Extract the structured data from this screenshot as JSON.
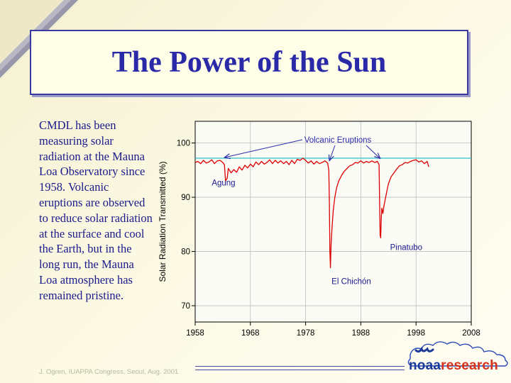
{
  "slide": {
    "title": "The Power of the Sun",
    "body": "CMDL has been measuring solar radiation at the Mauna Loa Observatory since 1958.  Volcanic eruptions are observed to reduce solar radiation at the surface and cool the Earth, but in the long run, the Mauna Loa atmosphere has remained pristine.",
    "footer": "J. Ogren, IUAPPA Congress, Seoul, Aug. 2001",
    "logo": {
      "left": "noaa",
      "right": "research"
    }
  },
  "colors": {
    "title": "#2a2aa8",
    "body_text": "#1a1a8c",
    "series": "#dd0000",
    "reference_line": "#30c0c8",
    "arrow": "#2a2aa8"
  },
  "chart_data": {
    "type": "line",
    "title": "",
    "xlabel": "",
    "ylabel": "Solar Radiation Transmitted (%)",
    "xlim": [
      1958,
      2008
    ],
    "ylim": [
      67,
      104
    ],
    "xticks": [
      "1958",
      "1968",
      "1978",
      "1988",
      "1998",
      "2008"
    ],
    "yticks": [
      "70",
      "80",
      "90",
      "100"
    ],
    "grid": true,
    "reference_line": 97.2,
    "annotations": [
      {
        "text": "Volcanic Eruptions",
        "arrow_targets": [
          [
            1963.3,
            97.2
          ],
          [
            1982.3,
            96.6
          ],
          [
            1991.5,
            97.0
          ]
        ]
      },
      {
        "text": "Agung",
        "x": 1961.0,
        "y": 92.2
      },
      {
        "text": "El Chichón",
        "x": 1982.7,
        "y": 74.0
      },
      {
        "text": "Pinatubo",
        "x": 1993.3,
        "y": 80.3
      }
    ],
    "series": [
      {
        "x": [
          1958.0,
          1958.5,
          1959.0,
          1959.5,
          1960.0,
          1960.5,
          1961.0,
          1961.5,
          1962.0,
          1962.5,
          1963.0,
          1963.3,
          1963.5,
          1963.8,
          1964.0,
          1964.5,
          1965.0,
          1965.5,
          1966.0,
          1966.5,
          1967.0,
          1967.5,
          1968.0,
          1968.5,
          1969.0,
          1969.5,
          1970.0,
          1970.5,
          1971.0,
          1971.5,
          1972.0,
          1972.5,
          1973.0,
          1973.5,
          1974.0,
          1974.5,
          1975.0,
          1975.5,
          1976.0,
          1976.5,
          1977.0,
          1977.5,
          1978.0,
          1978.5,
          1979.0,
          1979.5,
          1980.0,
          1980.5,
          1981.0,
          1981.5,
          1982.0,
          1982.2,
          1982.3,
          1982.4,
          1982.5,
          1982.6,
          1982.8,
          1983.0,
          1983.3,
          1983.6,
          1984.0,
          1984.5,
          1985.0,
          1985.5,
          1986.0,
          1986.5,
          1987.0,
          1987.5,
          1988.0,
          1988.5,
          1989.0,
          1989.5,
          1990.0,
          1990.5,
          1991.0,
          1991.3,
          1991.4,
          1991.5,
          1991.6,
          1991.7,
          1991.8,
          1992.0,
          1992.2,
          1992.5,
          1992.8,
          1993.0,
          1993.5,
          1994.0,
          1994.5,
          1995.0,
          1995.5,
          1996.0,
          1996.5,
          1997.0,
          1997.5,
          1998.0,
          1998.5,
          1999.0,
          1999.5,
          2000.0,
          2000.3
        ],
        "values": [
          96.4,
          96.6,
          96.2,
          96.8,
          96.3,
          96.5,
          96.9,
          96.2,
          96.7,
          96.8,
          96.4,
          96.0,
          93.0,
          93.5,
          95.3,
          94.5,
          95.1,
          94.6,
          95.6,
          95.0,
          95.9,
          95.4,
          96.1,
          95.6,
          96.5,
          96.0,
          96.6,
          96.1,
          96.4,
          96.9,
          96.2,
          96.8,
          96.3,
          96.7,
          96.2,
          96.6,
          96.0,
          96.8,
          96.2,
          97.0,
          96.8,
          97.2,
          96.8,
          96.3,
          96.7,
          96.1,
          96.6,
          96.2,
          96.4,
          96.7,
          96.3,
          95.0,
          89.0,
          80.0,
          77.0,
          81.0,
          84.5,
          87.5,
          90.0,
          91.7,
          93.0,
          94.0,
          94.8,
          95.3,
          95.8,
          96.0,
          96.4,
          96.3,
          96.7,
          96.3,
          96.6,
          96.4,
          96.7,
          96.4,
          96.6,
          96.0,
          89.0,
          83.0,
          82.5,
          86.0,
          88.0,
          87.0,
          88.5,
          90.0,
          91.5,
          92.5,
          93.8,
          94.5,
          95.2,
          95.8,
          96.0,
          96.4,
          96.3,
          96.6,
          96.8,
          96.9,
          96.5,
          96.7,
          96.2,
          96.6,
          95.6
        ]
      }
    ]
  }
}
